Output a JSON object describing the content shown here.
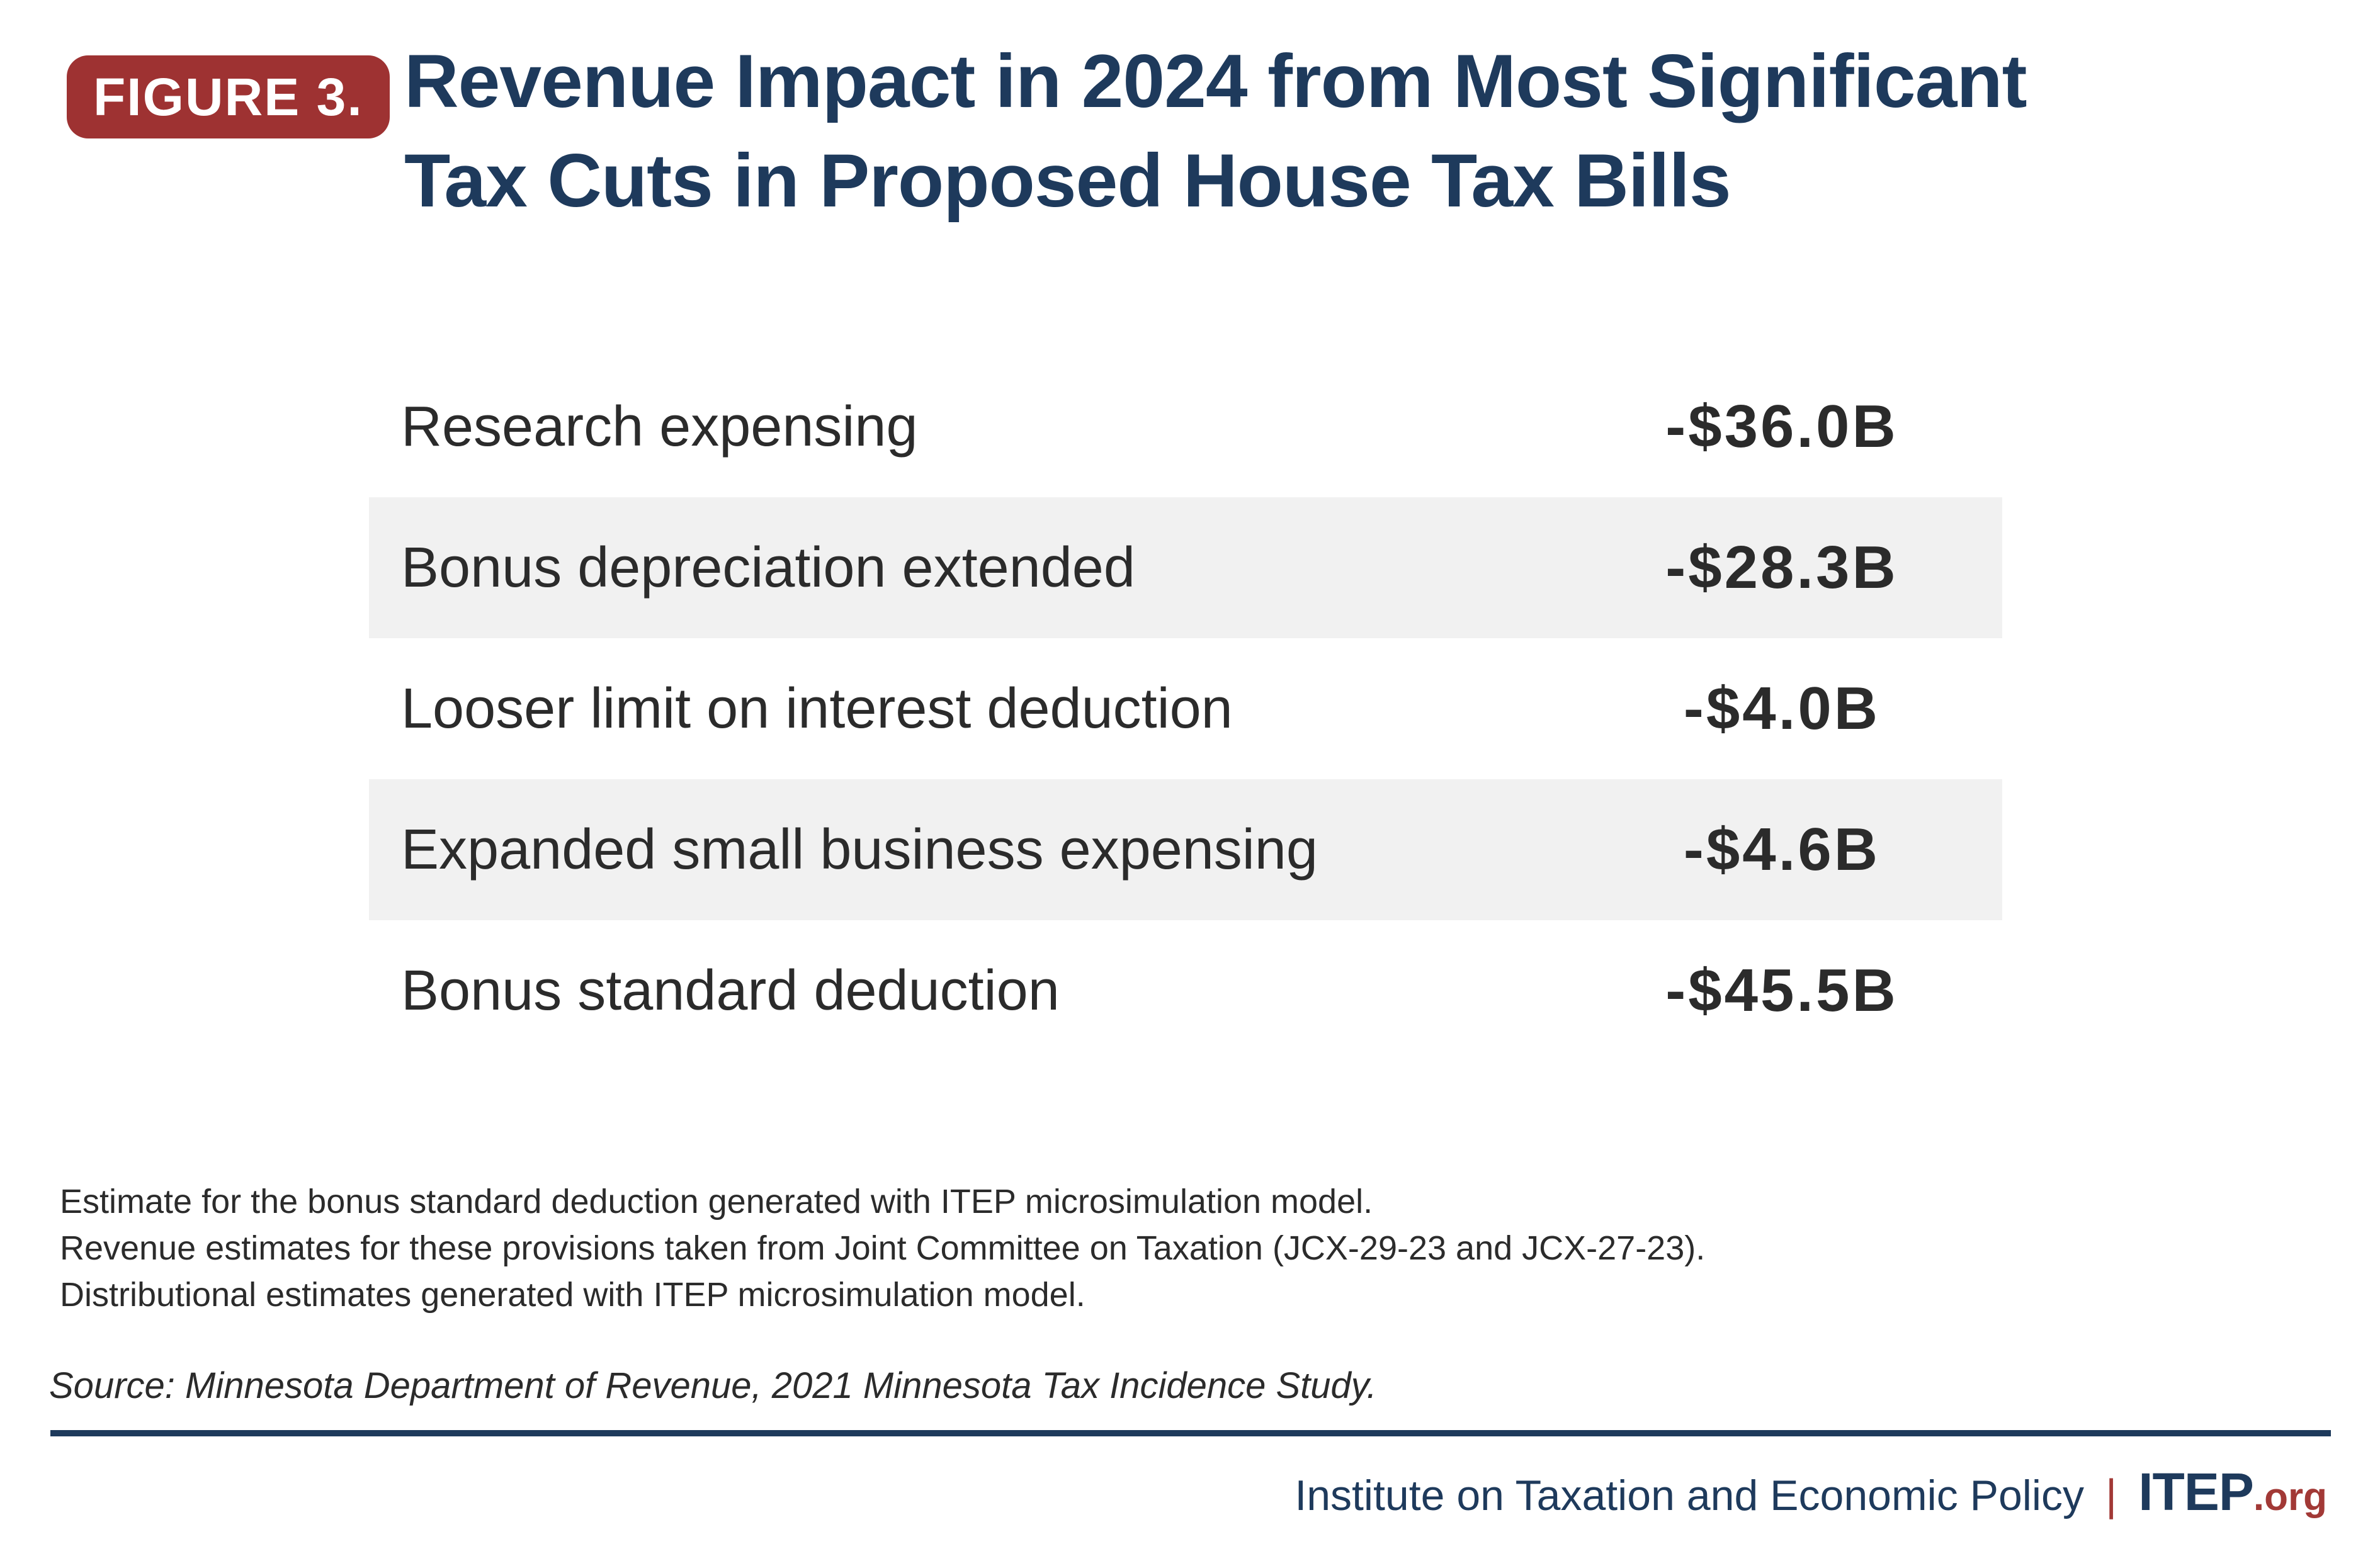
{
  "colors": {
    "navy": "#1e3a5c",
    "badge_red": "#9e3232",
    "accent_red": "#a23936",
    "row_stripe_gray": "#f1f1f1",
    "body_text": "#2b2b2b"
  },
  "header": {
    "badge": "FIGURE 3.",
    "title_lines": [
      "Revenue Impact in 2024 from Most Significant",
      "Tax Cuts in Proposed House Tax Bills"
    ]
  },
  "chart_data": {
    "type": "table",
    "title": "Revenue Impact in 2024 from Most Significant Tax Cuts in Proposed House Tax Bills",
    "categories": [
      "Research expensing",
      "Bonus depreciation extended",
      "Looser limit on interest deduction",
      "Expanded small business expensing",
      "Bonus standard deduction"
    ],
    "values_billions_usd": [
      -36.0,
      -28.3,
      -4.0,
      -4.6,
      -45.5
    ],
    "rows": [
      {
        "label": "Research expensing",
        "value": "-$36.0B"
      },
      {
        "label": "Bonus depreciation extended",
        "value": "-$28.3B"
      },
      {
        "label": "Looser limit on interest deduction",
        "value": "-$4.0B"
      },
      {
        "label": "Expanded small business expensing",
        "value": "-$4.6B"
      },
      {
        "label": "Bonus standard deduction",
        "value": "-$45.5B"
      }
    ]
  },
  "notes": {
    "lines": [
      "Estimate for the bonus standard deduction generated with ITEP microsimulation model.",
      "Revenue estimates for these provisions taken from Joint Committee on Taxation (JCX-29-23 and JCX-27-23).",
      "Distributional estimates generated with ITEP microsimulation model."
    ]
  },
  "source": "Source: Minnesota Department of Revenue, 2021 Minnesota Tax Incidence Study.",
  "footer": {
    "org": "Institute on Taxation and Economic Policy",
    "separator": "|",
    "brand": "ITEP",
    "brand_suffix": ".org"
  }
}
